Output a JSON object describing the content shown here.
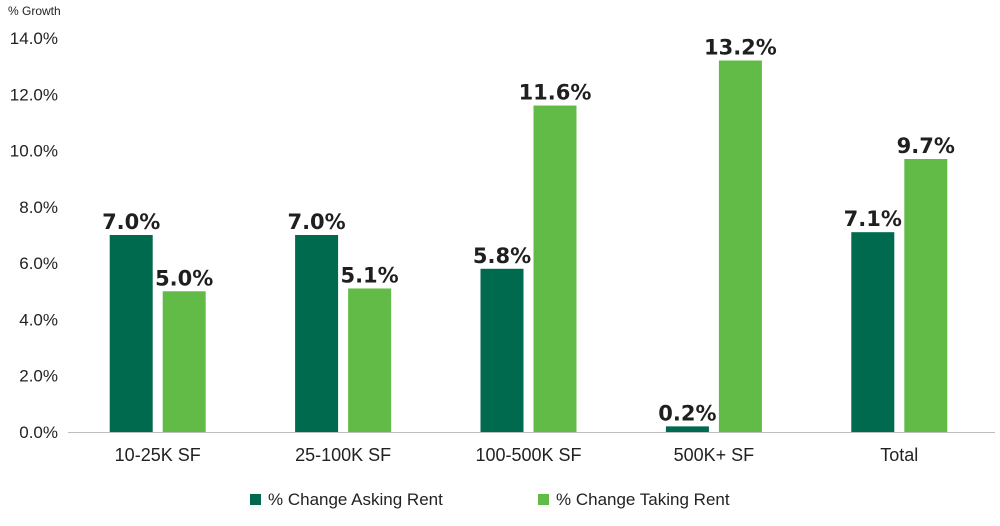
{
  "chart_data": {
    "type": "bar",
    "ylabel": "% Growth",
    "ylim": [
      0,
      14
    ],
    "yticks": [
      "0.0%",
      "2.0%",
      "4.0%",
      "6.0%",
      "8.0%",
      "10.0%",
      "12.0%",
      "14.0%"
    ],
    "categories": [
      "10-25K SF",
      "25-100K SF",
      "100-500K SF",
      "500K+ SF",
      "Total"
    ],
    "series": [
      {
        "name": "% Change Asking Rent",
        "color": "#006a4e",
        "values": [
          7.0,
          7.0,
          5.8,
          0.2,
          7.1
        ],
        "labels": [
          "7.0%",
          "7.0%",
          "5.8%",
          "0.2%",
          "7.1%"
        ]
      },
      {
        "name": "% Change Taking Rent",
        "color": "#62bb46",
        "values": [
          5.0,
          5.1,
          11.6,
          13.2,
          9.7
        ],
        "labels": [
          "5.0%",
          "5.1%",
          "11.6%",
          "13.2%",
          "9.7%"
        ]
      }
    ],
    "grid": false,
    "legend": "bottom"
  }
}
